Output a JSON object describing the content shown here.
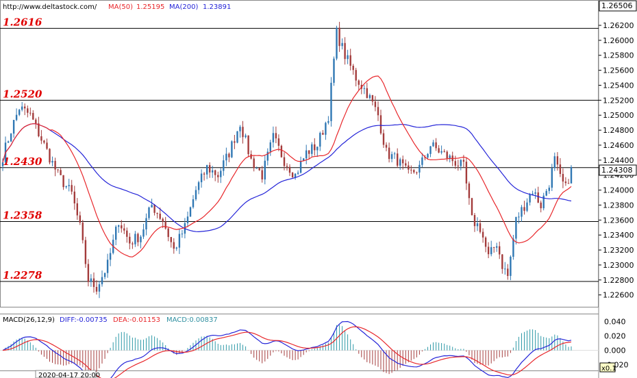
{
  "header": {
    "url": "http://www.deltastock.com/",
    "ma50_label": "MA(50)",
    "ma50_value": "1.25195",
    "ma200_label": "MA(200)",
    "ma200_value": "1.23891"
  },
  "price_axis": {
    "top_label": "1.26506",
    "current_label": "1.24308",
    "ticks": [
      "1.26200",
      "1.26000",
      "1.25800",
      "1.25600",
      "1.25400",
      "1.25200",
      "1.25000",
      "1.24800",
      "1.24600",
      "1.24400",
      "1.24200",
      "1.24000",
      "1.23800",
      "1.23600",
      "1.23400",
      "1.23200",
      "1.23000",
      "1.22800",
      "1.22600"
    ]
  },
  "levels": [
    "1.2616",
    "1.2520",
    "1.2430",
    "1.2358",
    "1.2278"
  ],
  "macd_header": {
    "label": "MACD(26,12,9)",
    "diff": "DIFF:-0.00735",
    "dea": "DEA:-0.01153",
    "macd": "MACD:0.00837"
  },
  "macd_axis": {
    "ticks": [
      "0.040",
      "0.020",
      "0.000",
      "-0.020"
    ],
    "scale_badge": "x0.1"
  },
  "time_label": "2020-04-17 20:00",
  "colors": {
    "bull": "#2f77b3",
    "bear": "#a33b3b",
    "ma50": "#e8262a",
    "ma200": "#2424d8",
    "level_text": "#e00000",
    "diff": "#2424d8",
    "dea": "#e8262a"
  },
  "chart_data": {
    "type": "candlestick",
    "ylim": [
      1.2246,
      1.2652
    ],
    "levels": [
      1.2616,
      1.252,
      1.243,
      1.2358,
      1.2278
    ],
    "last_price": 1.24308,
    "ma50": 1.25195,
    "ma200": 1.23891,
    "price_path": [
      [
        0,
        1.2445
      ],
      [
        3,
        1.248
      ],
      [
        6,
        1.251
      ],
      [
        10,
        1.25
      ],
      [
        15,
        1.246
      ],
      [
        20,
        1.242
      ],
      [
        25,
        1.2395
      ],
      [
        28,
        1.235
      ],
      [
        31,
        1.228
      ],
      [
        34,
        1.227
      ],
      [
        38,
        1.23
      ],
      [
        42,
        1.236
      ],
      [
        46,
        1.233
      ],
      [
        50,
        1.234
      ],
      [
        54,
        1.238
      ],
      [
        58,
        1.236
      ],
      [
        62,
        1.232
      ],
      [
        66,
        1.235
      ],
      [
        70,
        1.24
      ],
      [
        74,
        1.243
      ],
      [
        78,
        1.242
      ],
      [
        82,
        1.245
      ],
      [
        86,
        1.249
      ],
      [
        90,
        1.244
      ],
      [
        94,
        1.242
      ],
      [
        98,
        1.247
      ],
      [
        102,
        1.244
      ],
      [
        106,
        1.242
      ],
      [
        110,
        1.245
      ],
      [
        114,
        1.246
      ],
      [
        118,
        1.25
      ],
      [
        121,
        1.261
      ],
      [
        124,
        1.258
      ],
      [
        128,
        1.255
      ],
      [
        132,
        1.253
      ],
      [
        136,
        1.25
      ],
      [
        139,
        1.245
      ],
      [
        143,
        1.244
      ],
      [
        147,
        1.242
      ],
      [
        151,
        1.243
      ],
      [
        155,
        1.246
      ],
      [
        159,
        1.245
      ],
      [
        163,
        1.244
      ],
      [
        167,
        1.243
      ],
      [
        170,
        1.236
      ],
      [
        173,
        1.235
      ],
      [
        176,
        1.231
      ],
      [
        179,
        1.233
      ],
      [
        181,
        1.23
      ],
      [
        183,
        1.2285
      ],
      [
        186,
        1.236
      ],
      [
        189,
        1.238
      ],
      [
        192,
        1.24
      ],
      [
        195,
        1.238
      ],
      [
        198,
        1.241
      ],
      [
        200,
        1.244
      ],
      [
        202,
        1.2415
      ],
      [
        204,
        1.2402
      ],
      [
        206,
        1.2431
      ]
    ],
    "candles": 207,
    "macd": {
      "diff_last": -0.00735,
      "dea_last": -0.01153,
      "hist_last": 0.00837,
      "ylim": [
        -0.026,
        0.047
      ],
      "ticks": [
        0.04,
        0.02,
        0.0,
        -0.02
      ]
    }
  }
}
